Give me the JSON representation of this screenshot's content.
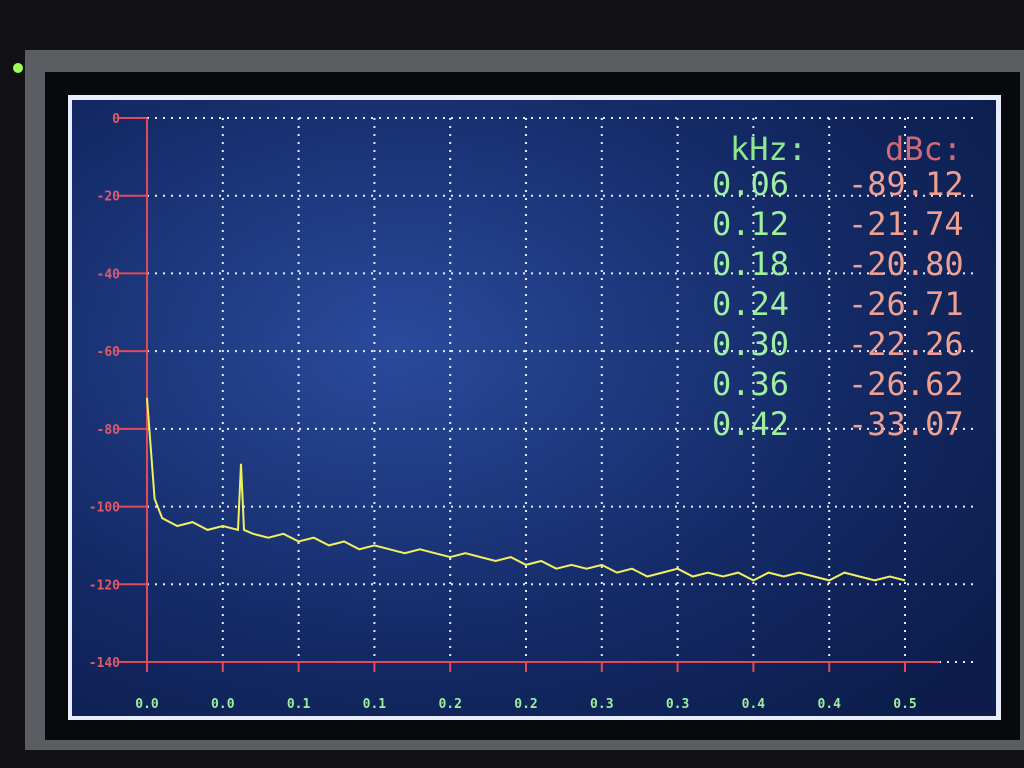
{
  "chart_data": {
    "type": "line",
    "x": [
      0,
      0.005,
      0.01,
      0.02,
      0.03,
      0.04,
      0.05,
      0.06,
      0.062,
      0.064,
      0.07,
      0.08,
      0.09,
      0.1,
      0.11,
      0.12,
      0.13,
      0.14,
      0.15,
      0.16,
      0.17,
      0.18,
      0.19,
      0.2,
      0.21,
      0.22,
      0.23,
      0.24,
      0.25,
      0.26,
      0.27,
      0.28,
      0.29,
      0.3,
      0.31,
      0.32,
      0.33,
      0.34,
      0.35,
      0.36,
      0.37,
      0.38,
      0.39,
      0.4,
      0.41,
      0.42,
      0.43,
      0.44,
      0.45,
      0.46,
      0.47,
      0.48,
      0.49,
      0.5
    ],
    "series": [
      {
        "color": "#f0f060",
        "values": [
          -72,
          -98,
          -103,
          -105,
          -104,
          -106,
          -105,
          -106,
          -89,
          -106,
          -107,
          -108,
          -107,
          -109,
          -108,
          -110,
          -109,
          -111,
          -110,
          -111,
          -112,
          -111,
          -112,
          -113,
          -112,
          -113,
          -114,
          -113,
          -115,
          -114,
          -116,
          -115,
          -116,
          -115,
          -117,
          -116,
          -118,
          -117,
          -116,
          -118,
          -117,
          -118,
          -117,
          -119,
          -117,
          -118,
          -117,
          -118,
          -119,
          -117,
          -118,
          -119,
          -118,
          -119
        ]
      }
    ],
    "xlim": [
      0,
      0.5
    ],
    "xticks": [
      {
        "value": 0,
        "label": "0.0"
      },
      {
        "value": 0.05,
        "label": "0.0"
      },
      {
        "value": 0.1,
        "label": "0.1"
      },
      {
        "value": 0.15,
        "label": "0.1"
      },
      {
        "value": 0.2,
        "label": "0.2"
      },
      {
        "value": 0.25,
        "label": "0.2"
      },
      {
        "value": 0.3,
        "label": "0.3"
      },
      {
        "value": 0.35,
        "label": "0.3"
      },
      {
        "value": 0.4,
        "label": "0.4"
      },
      {
        "value": 0.45,
        "label": "0.4"
      },
      {
        "value": 0.5,
        "label": "0.5"
      }
    ],
    "ylim": [
      -140,
      0
    ],
    "yticks": [
      0,
      -20,
      -40,
      -60,
      -80,
      -100,
      -120,
      -140
    ],
    "grid": true
  },
  "table": {
    "headers": [
      "kHz:",
      "dBc:"
    ],
    "rows": [
      [
        "0.06",
        "-89.12"
      ],
      [
        "0.12",
        "-21.74"
      ],
      [
        "0.18",
        "-20.80"
      ],
      [
        "0.24",
        "-26.71"
      ],
      [
        "0.30",
        "-22.26"
      ],
      [
        "0.36",
        "-26.62"
      ],
      [
        "0.42",
        "-33.07"
      ]
    ]
  }
}
